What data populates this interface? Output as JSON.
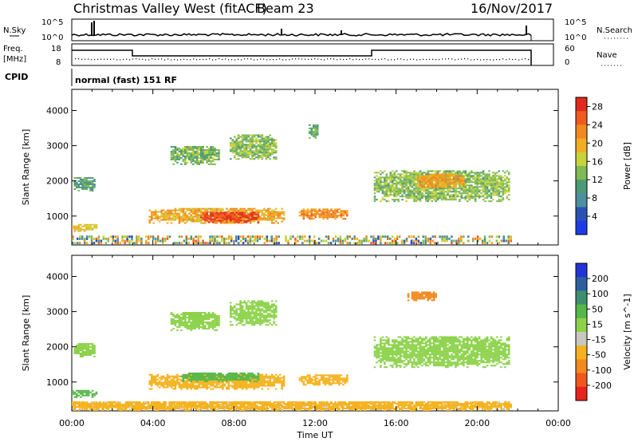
{
  "header": {
    "title": "Christmas Valley West (fitACF)",
    "beam": "Beam 23",
    "date": "16/Nov/2017"
  },
  "panels": {
    "nsky": {
      "label": "N.Sky",
      "ticks": [
        "10^5",
        "10^0"
      ],
      "right_label": "N.Search",
      "right_ticks": [
        "10^5",
        "10^0"
      ]
    },
    "freq": {
      "label_line1": "Freq.",
      "label_line2": "[MHz]",
      "ticks": [
        "18",
        "8"
      ],
      "right_label": "Nave",
      "right_ticks": [
        "60",
        "0"
      ]
    },
    "cpid": {
      "label": "CPID",
      "text": "normal (fast) 151 RF"
    }
  },
  "colors": {
    "power": [
      "#1a3de8",
      "#2a52b5",
      "#4b8fa0",
      "#4c9b75",
      "#7fba55",
      "#c9d23a",
      "#f2ad22",
      "#f08a1e",
      "#f05a1e",
      "#e02b1c"
    ],
    "velocity": [
      "#e8231b",
      "#f0571e",
      "#f28a1e",
      "#f5b21e",
      "#c8c8c0",
      "#8cd24a",
      "#55b848",
      "#3e8f70",
      "#2d5fa0",
      "#2233d8"
    ]
  },
  "chart_data": [
    {
      "type": "heatmap",
      "name": "power",
      "ylabel": "Slant Range [km]",
      "yticks": [
        1000,
        2000,
        3000,
        4000
      ],
      "ylim": [
        180,
        4600
      ],
      "colorbar": {
        "label": "Power [dB]",
        "ticks": [
          4,
          8,
          12,
          16,
          20,
          24,
          28
        ],
        "range": [
          0,
          30
        ]
      },
      "echo_regions": [
        {
          "t0": 0.1,
          "t1": 1.2,
          "r0": 1700,
          "r1": 2100,
          "value": 11
        },
        {
          "t0": 0.0,
          "t1": 1.3,
          "r0": 550,
          "r1": 750,
          "value": 18
        },
        {
          "t0": 3.9,
          "t1": 10.8,
          "r0": 780,
          "r1": 1220,
          "value": 20
        },
        {
          "t0": 6.5,
          "t1": 9.5,
          "r0": 800,
          "r1": 1100,
          "value": 27
        },
        {
          "t0": 11.5,
          "t1": 14.0,
          "r0": 900,
          "r1": 1200,
          "value": 22
        },
        {
          "t0": 5.0,
          "t1": 7.5,
          "r0": 2450,
          "r1": 2950,
          "value": 13
        },
        {
          "t0": 8.0,
          "t1": 10.3,
          "r0": 2600,
          "r1": 3300,
          "value": 14
        },
        {
          "t0": 15.3,
          "t1": 22.2,
          "r0": 1400,
          "r1": 2300,
          "value": 14
        },
        {
          "t0": 17.5,
          "t1": 19.8,
          "r0": 1800,
          "r1": 2200,
          "value": 21
        },
        {
          "t0": 12.0,
          "t1": 12.5,
          "r0": 3200,
          "r1": 3600,
          "value": 12
        }
      ]
    },
    {
      "type": "heatmap",
      "name": "velocity",
      "ylabel": "Slant Range [km]",
      "xlabel": "Time UT",
      "xticks": [
        "00:00",
        "04:00",
        "08:00",
        "12:00",
        "16:00",
        "20:00",
        "00:00"
      ],
      "xlim": [
        0,
        24
      ],
      "yticks": [
        1000,
        2000,
        3000,
        4000
      ],
      "ylim": [
        180,
        4600
      ],
      "colorbar": {
        "label": "Velocity [m s^-1]",
        "ticks": [
          200,
          100,
          50,
          15,
          -15,
          -50,
          -100,
          -200
        ]
      },
      "echo_regions": [
        {
          "t0": 0.1,
          "t1": 1.2,
          "r0": 1700,
          "r1": 2100,
          "value": 0
        },
        {
          "t0": 0.0,
          "t1": 1.3,
          "r0": 550,
          "r1": 750,
          "value": 40
        },
        {
          "t0": 3.9,
          "t1": 10.8,
          "r0": 780,
          "r1": 1220,
          "value": -60
        },
        {
          "t0": 5.5,
          "t1": 9.5,
          "r0": 1000,
          "r1": 1250,
          "value": 40
        },
        {
          "t0": 11.5,
          "t1": 14.0,
          "r0": 900,
          "r1": 1200,
          "value": -60
        },
        {
          "t0": 5.0,
          "t1": 7.5,
          "r0": 2450,
          "r1": 2950,
          "value": 0
        },
        {
          "t0": 8.0,
          "t1": 10.3,
          "r0": 2600,
          "r1": 3300,
          "value": 0
        },
        {
          "t0": 15.3,
          "t1": 22.2,
          "r0": 1400,
          "r1": 2300,
          "value": 0
        },
        {
          "t0": 0.0,
          "t1": 22.2,
          "r0": 180,
          "r1": 420,
          "value": -60
        },
        {
          "t0": 17.0,
          "t1": 18.5,
          "r0": 3300,
          "r1": 3550,
          "value": -150
        }
      ]
    }
  ]
}
